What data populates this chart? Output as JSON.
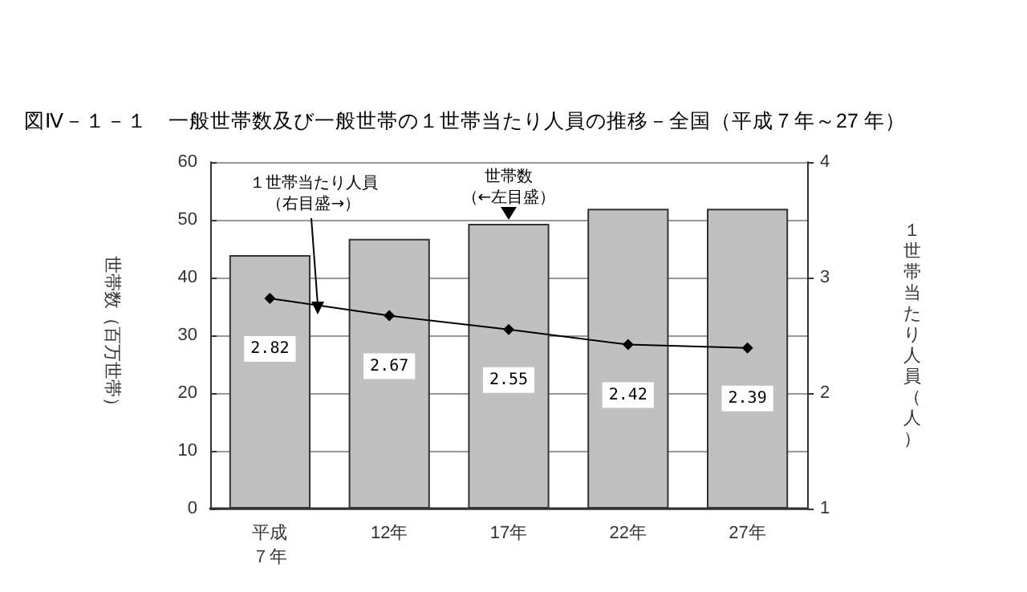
{
  "chart_data": {
    "type": "bar",
    "title": "図Ⅳ－１－１　一般世帯数及び一般世帯の１世帯当たり人員の推移－全国（平成７年～27 年）",
    "categories": [
      "平成７年",
      "12年",
      "17年",
      "22年",
      "27年"
    ],
    "ylabel": "世帯数（百万世帯）",
    "y2label": "１世帯当たり人員（人）",
    "series": [
      {
        "color": "#c0c0c0",
        "values": [
          43.9,
          46.7,
          49.3,
          51.9,
          51.9
        ]
      },
      {
        "type": "line",
        "axis": "y2",
        "color": "#000000",
        "values": [
          2.82,
          2.67,
          2.55,
          2.42,
          2.39
        ],
        "data_labels": true,
        "marker": "diamond"
      }
    ],
    "ylim": [
      0,
      60
    ],
    "yticks": [
      0,
      10,
      20,
      30,
      40,
      50,
      60
    ],
    "y2lim": [
      1,
      4
    ],
    "y2ticks": [
      1,
      2,
      3,
      4
    ],
    "grid": "y",
    "annotations": [
      "１世帯当たり人員（右目盛→）",
      {
        "text": "世帯数（←左目盛）",
        "x": "17年",
        "y": 49.3
      }
    ]
  }
}
